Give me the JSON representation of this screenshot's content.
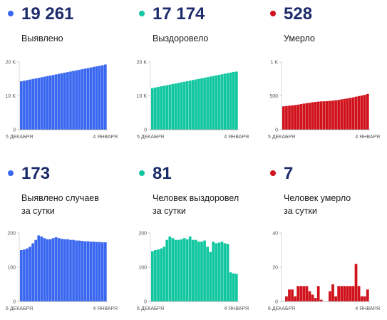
{
  "colors": {
    "blue": "#3a67f0",
    "teal": "#12c7a0",
    "red": "#d0121c",
    "number": "#1c2b6b",
    "axis": "#888888"
  },
  "panels": [
    {
      "number": "19 261",
      "label_lines": [
        "Выявлено"
      ],
      "color": "blue"
    },
    {
      "number": "17 174",
      "label_lines": [
        "Выздоровело"
      ],
      "color": "teal"
    },
    {
      "number": "528",
      "label_lines": [
        "Умерло"
      ],
      "color": "red"
    },
    {
      "number": "173",
      "label_lines": [
        "Выявлено случаев",
        "за сутки"
      ],
      "color": "blue"
    },
    {
      "number": "81",
      "label_lines": [
        "Человек выздоровел",
        "за сутки"
      ],
      "color": "teal"
    },
    {
      "number": "7",
      "label_lines": [
        "Человек умерло",
        "за сутки"
      ],
      "color": "red"
    }
  ],
  "chart_data": [
    {
      "type": "bar",
      "color": "blue",
      "ylim": [
        0,
        20000
      ],
      "yticks": [
        {
          "v": 0,
          "label": "0"
        },
        {
          "v": 10000,
          "label": "10 K"
        },
        {
          "v": 20000,
          "label": "20 K"
        }
      ],
      "x_start_label": "5 ДЕКАБРЯ",
      "x_end_label": "4 ЯНВАРЯ",
      "values": [
        14300,
        14470,
        14640,
        14810,
        14980,
        15150,
        15320,
        15490,
        15660,
        15830,
        16000,
        16170,
        16340,
        16510,
        16680,
        16850,
        17020,
        17190,
        17360,
        17530,
        17700,
        17870,
        18040,
        18210,
        18380,
        18550,
        18720,
        18880,
        19040,
        19261
      ]
    },
    {
      "type": "bar",
      "color": "teal",
      "ylim": [
        0,
        20000
      ],
      "yticks": [
        {
          "v": 0,
          "label": "0"
        },
        {
          "v": 10000,
          "label": "10 K"
        },
        {
          "v": 20000,
          "label": "20 K"
        }
      ],
      "x_start_label": "5 ДЕКАБРЯ",
      "x_end_label": "4 ЯНВАРЯ",
      "values": [
        12300,
        12470,
        12640,
        12810,
        12980,
        13150,
        13320,
        13490,
        13660,
        13830,
        14000,
        14170,
        14340,
        14510,
        14680,
        14850,
        15020,
        15190,
        15360,
        15530,
        15700,
        15870,
        16040,
        16210,
        16380,
        16550,
        16720,
        16890,
        17060,
        17174
      ]
    },
    {
      "type": "bar",
      "color": "red",
      "ylim": [
        0,
        1000
      ],
      "yticks": [
        {
          "v": 0,
          "label": "0"
        },
        {
          "v": 500,
          "label": "500"
        },
        {
          "v": 1000,
          "label": "1 K"
        }
      ],
      "x_start_label": "5 ДЕКАБРЯ",
      "x_end_label": "4 ЯНВАРЯ",
      "values": [
        345,
        350,
        355,
        360,
        365,
        370,
        378,
        385,
        392,
        398,
        405,
        410,
        415,
        418,
        420,
        422,
        425,
        430,
        435,
        440,
        448,
        455,
        462,
        470,
        478,
        488,
        497,
        505,
        515,
        528
      ]
    },
    {
      "type": "bar",
      "color": "blue",
      "ylim": [
        0,
        200
      ],
      "yticks": [
        {
          "v": 0,
          "label": "0"
        },
        {
          "v": 100,
          "label": "100"
        },
        {
          "v": 200,
          "label": "200"
        }
      ],
      "x_start_label": "6 ДЕКАБРЯ",
      "x_end_label": "4 ЯНВАРЯ",
      "values": [
        150,
        152,
        155,
        160,
        170,
        180,
        193,
        190,
        185,
        182,
        182,
        185,
        188,
        185,
        183,
        182,
        182,
        180,
        180,
        178,
        178,
        177,
        176,
        176,
        175,
        175,
        174,
        174,
        173,
        173
      ]
    },
    {
      "type": "bar",
      "color": "teal",
      "ylim": [
        0,
        200
      ],
      "yticks": [
        {
          "v": 0,
          "label": "0"
        },
        {
          "v": 100,
          "label": "100"
        },
        {
          "v": 200,
          "label": "200"
        }
      ],
      "x_start_label": "6 ДЕКАБРЯ",
      "x_end_label": "4 ЯНВАРЯ",
      "values": [
        147,
        150,
        152,
        155,
        160,
        180,
        190,
        185,
        180,
        180,
        182,
        185,
        182,
        190,
        180,
        180,
        175,
        175,
        178,
        160,
        145,
        175,
        170,
        172,
        175,
        170,
        168,
        85,
        82,
        81
      ]
    },
    {
      "type": "bar",
      "color": "red",
      "ylim": [
        0,
        40
      ],
      "yticks": [
        {
          "v": 0,
          "label": "0"
        },
        {
          "v": 20,
          "label": "20"
        },
        {
          "v": 40,
          "label": "40"
        }
      ],
      "x_start_label": "6 ДЕКАБРЯ",
      "x_end_label": "4 ЯНВАРЯ",
      "values": [
        0,
        3,
        7,
        7,
        3,
        9,
        9,
        9,
        9,
        6,
        4,
        2,
        9,
        1,
        0,
        0,
        6,
        10,
        3,
        9,
        9,
        9,
        9,
        9,
        9,
        22,
        9,
        3,
        3,
        7
      ]
    }
  ]
}
